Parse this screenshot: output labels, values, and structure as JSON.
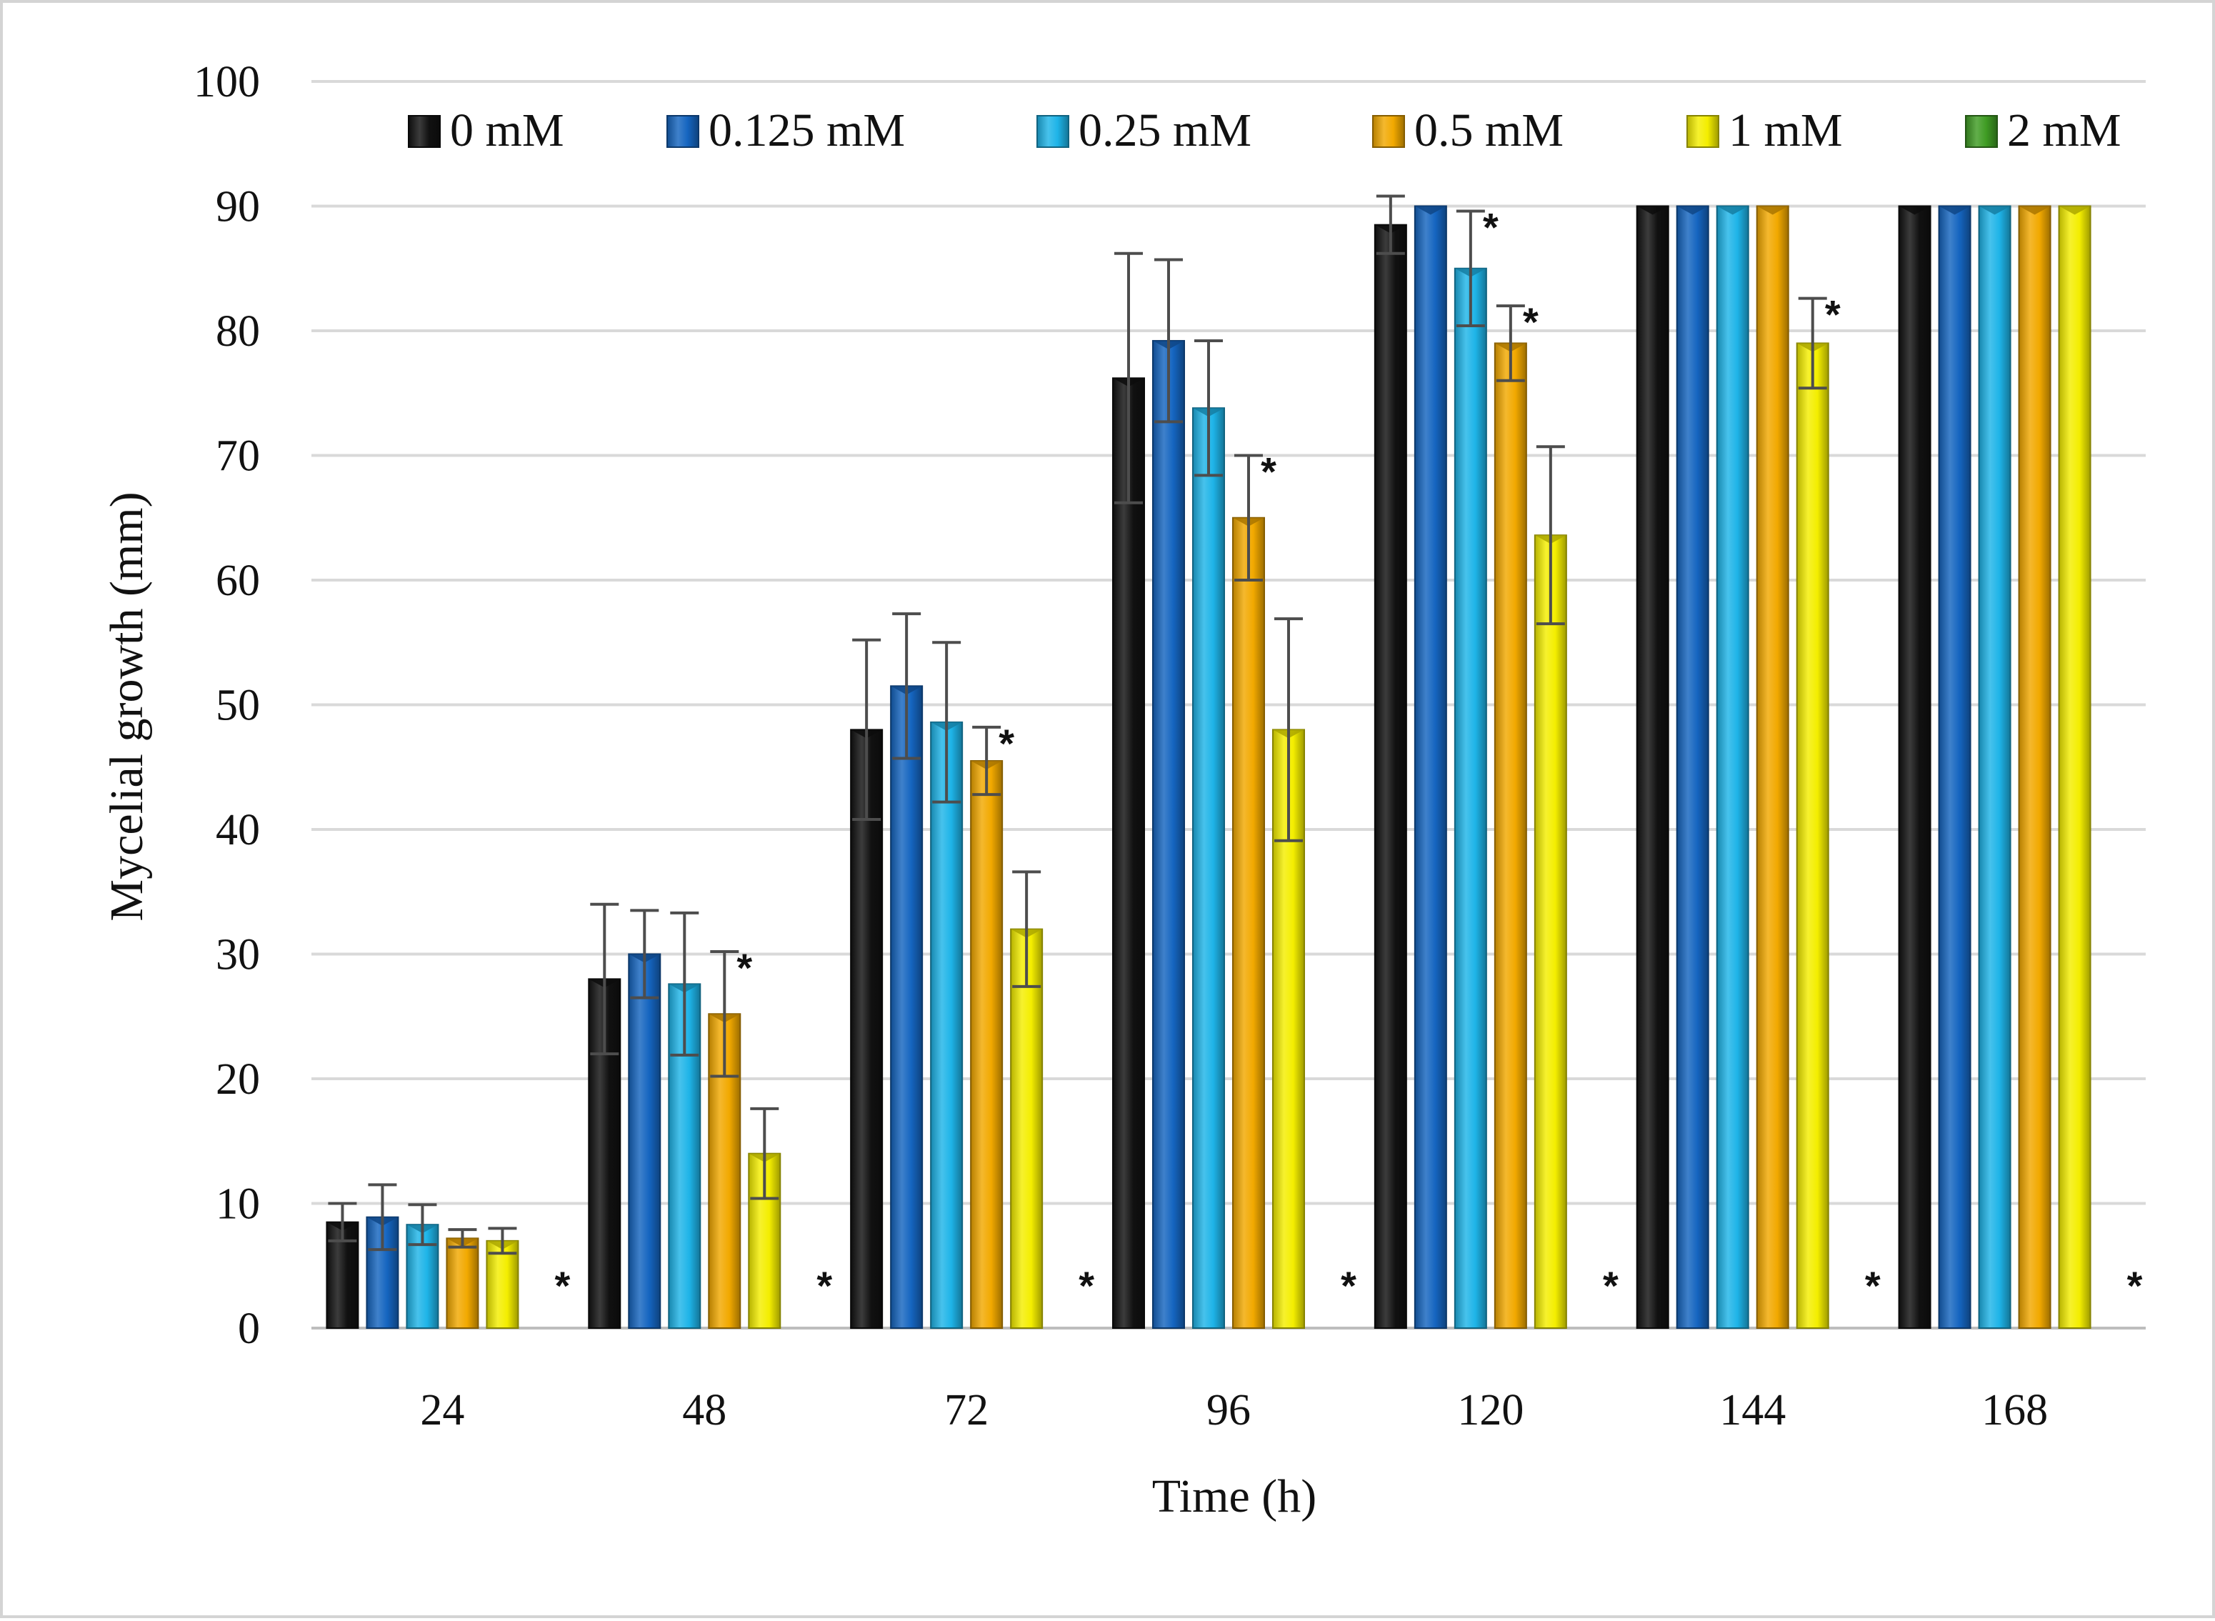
{
  "chart_data": {
    "type": "bar",
    "title": "",
    "xlabel": "Time (h)",
    "ylabel": "Mycelial growth (mm)",
    "ylim": [
      0,
      100
    ],
    "yticks": [
      0,
      10,
      20,
      30,
      40,
      50,
      60,
      70,
      80,
      90,
      100
    ],
    "grid": true,
    "legend_position": "top",
    "categories": [
      "24",
      "48",
      "72",
      "96",
      "120",
      "144",
      "168"
    ],
    "series": [
      {
        "name": "0 mM",
        "color": "#111111",
        "values": [
          8.5,
          28,
          48,
          76.2,
          88.5,
          90,
          90
        ],
        "errors": [
          1.5,
          6,
          7.2,
          10,
          2.3,
          0,
          0
        ],
        "significant": [
          false,
          false,
          false,
          false,
          false,
          false,
          false
        ]
      },
      {
        "name": "0.125 mM",
        "color": "#1565c0",
        "values": [
          8.9,
          30,
          51.5,
          79.2,
          90,
          90,
          90
        ],
        "errors": [
          2.6,
          3.5,
          5.8,
          6.5,
          0,
          0,
          0
        ],
        "significant": [
          false,
          false,
          false,
          false,
          false,
          false,
          false
        ]
      },
      {
        "name": "0.25 mM",
        "color": "#1eb4e8",
        "values": [
          8.3,
          27.6,
          48.6,
          73.8,
          85,
          90,
          90
        ],
        "errors": [
          1.6,
          5.7,
          6.4,
          5.4,
          4.6,
          0,
          0
        ],
        "significant": [
          false,
          false,
          false,
          false,
          true,
          false,
          false
        ]
      },
      {
        "name": "0.5 mM",
        "color": "#f2a900",
        "values": [
          7.2,
          25.2,
          45.5,
          65,
          79,
          90,
          90
        ],
        "errors": [
          0.7,
          5,
          2.7,
          5,
          3,
          0,
          0
        ],
        "significant": [
          false,
          true,
          true,
          true,
          true,
          false,
          false
        ]
      },
      {
        "name": "1 mM",
        "color": "#f4ee00",
        "values": [
          7,
          14,
          32,
          48,
          63.6,
          79,
          90
        ],
        "errors": [
          1,
          3.6,
          4.6,
          8.9,
          7.1,
          3.6,
          0
        ],
        "significant": [
          false,
          false,
          false,
          false,
          false,
          true,
          false
        ]
      },
      {
        "name": "2 mM",
        "color": "#3f9c24",
        "values": [
          0,
          0,
          0,
          0,
          0,
          0,
          0
        ],
        "errors": [
          0,
          0,
          0,
          0,
          0,
          0,
          0
        ],
        "significant": [
          true,
          true,
          true,
          true,
          true,
          true,
          true
        ]
      }
    ],
    "significance_marker": "*"
  }
}
